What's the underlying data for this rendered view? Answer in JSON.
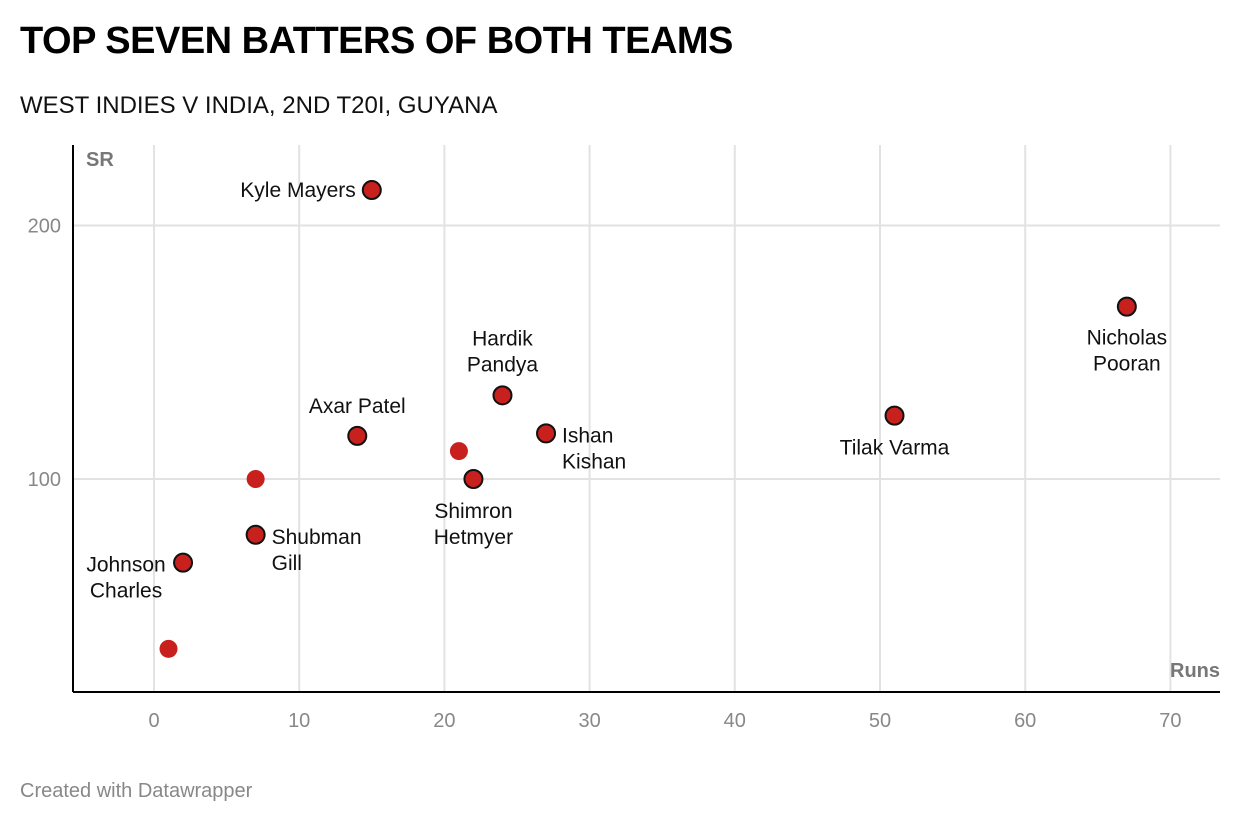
{
  "title": "TOP SEVEN BATTERS OF BOTH TEAMS",
  "subtitle": "WEST INDIES V INDIA, 2ND T20I, GUYANA",
  "footer": "Created with Datawrapper",
  "colors": {
    "point": "#c8201d",
    "outline": "#111111",
    "grid": "#e2e2e2",
    "axis": "#000000"
  },
  "chart_data": {
    "type": "scatter",
    "xlabel": "Runs",
    "ylabel": "SR",
    "xlim": [
      -5.5,
      73
    ],
    "ylim": [
      13,
      230
    ],
    "xticks": [
      0,
      10,
      20,
      30,
      40,
      50,
      60,
      70
    ],
    "yticks": [
      100,
      200
    ],
    "grid": true,
    "points": [
      {
        "name": "Kyle Mayers",
        "x": 15,
        "y": 214,
        "labeled": true
      },
      {
        "name": "Nicholas Pooran",
        "x": 67,
        "y": 168,
        "labeled": true
      },
      {
        "name": "Hardik Pandya",
        "x": 24,
        "y": 133,
        "labeled": true
      },
      {
        "name": "Tilak Varma",
        "x": 51,
        "y": 125,
        "labeled": true
      },
      {
        "name": "Axar Patel",
        "x": 14,
        "y": 117,
        "labeled": true
      },
      {
        "name": "Ishan Kishan",
        "x": 27,
        "y": 118,
        "labeled": true
      },
      {
        "name": "Shimron Hetmyer",
        "x": 22,
        "y": 100,
        "labeled": true
      },
      {
        "name": "Shubman Gill",
        "x": 7,
        "y": 78,
        "labeled": true
      },
      {
        "name": "Johnson Charles",
        "x": 2,
        "y": 67,
        "labeled": true
      },
      {
        "name": "",
        "x": 21,
        "y": 111,
        "labeled": false
      },
      {
        "name": "",
        "x": 7,
        "y": 100,
        "labeled": false
      },
      {
        "name": "",
        "x": 1,
        "y": 33,
        "labeled": false
      }
    ]
  }
}
